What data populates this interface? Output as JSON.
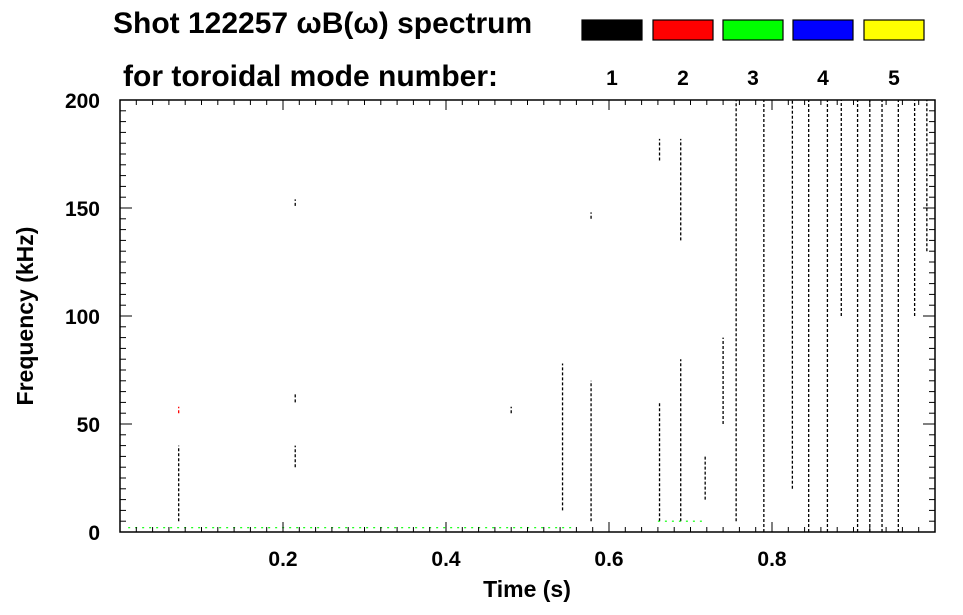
{
  "chart_data": {
    "type": "heatmap",
    "title_line1": "Shot 122257 ωB(ω) spectrum",
    "title_line2": "for toroidal mode number:",
    "xlabel": "Time (s)",
    "ylabel": "Frequency (kHz)",
    "xlim": [
      0.0,
      1.0
    ],
    "ylim": [
      0,
      200
    ],
    "xticks": [
      0.2,
      0.4,
      0.6,
      0.8
    ],
    "yticks": [
      0,
      50,
      100,
      150,
      200
    ],
    "grid": false,
    "legend_position": "top",
    "modes": [
      {
        "label": "1",
        "color": "#000000"
      },
      {
        "label": "2",
        "color": "#ff0000"
      },
      {
        "label": "3",
        "color": "#00ff00"
      },
      {
        "label": "4",
        "color": "#0000ff"
      },
      {
        "label": "5",
        "color": "#ffff00"
      }
    ],
    "mode_colors": [
      "#000000",
      "#ff0000",
      "#00ff00",
      "#0000ff",
      "#ffff00"
    ],
    "features": [
      {
        "mode": 0,
        "t": 0.072,
        "f0": 5,
        "f1": 40
      },
      {
        "mode": 1,
        "t": 0.072,
        "f0": 55,
        "f1": 58
      },
      {
        "mode": 0,
        "t": 0.215,
        "f0": 30,
        "f1": 40
      },
      {
        "mode": 0,
        "t": 0.215,
        "f0": 60,
        "f1": 64
      },
      {
        "mode": 0,
        "t": 0.215,
        "f0": 151,
        "f1": 154
      },
      {
        "mode": 0,
        "t": 0.48,
        "f0": 55,
        "f1": 58
      },
      {
        "mode": 0,
        "t": 0.543,
        "f0": 10,
        "f1": 78
      },
      {
        "mode": 0,
        "t": 0.578,
        "f0": 5,
        "f1": 70
      },
      {
        "mode": 0,
        "t": 0.578,
        "f0": 145,
        "f1": 148
      },
      {
        "mode": 0,
        "t": 0.662,
        "f0": 5,
        "f1": 60
      },
      {
        "mode": 0,
        "t": 0.662,
        "f0": 172,
        "f1": 182
      },
      {
        "mode": 0,
        "t": 0.688,
        "f0": 5,
        "f1": 80
      },
      {
        "mode": 0,
        "t": 0.688,
        "f0": 135,
        "f1": 182
      },
      {
        "mode": 0,
        "t": 0.718,
        "f0": 15,
        "f1": 35
      },
      {
        "mode": 0,
        "t": 0.74,
        "f0": 50,
        "f1": 90
      },
      {
        "mode": 0,
        "t": 0.756,
        "f0": 5,
        "f1": 200
      },
      {
        "mode": 0,
        "t": 0.79,
        "f0": 0,
        "f1": 200
      },
      {
        "mode": 0,
        "t": 0.825,
        "f0": 20,
        "f1": 200
      },
      {
        "mode": 0,
        "t": 0.845,
        "f0": 0,
        "f1": 200
      },
      {
        "mode": 0,
        "t": 0.868,
        "f0": 0,
        "f1": 200
      },
      {
        "mode": 0,
        "t": 0.885,
        "f0": 100,
        "f1": 200
      },
      {
        "mode": 0,
        "t": 0.905,
        "f0": 0,
        "f1": 200
      },
      {
        "mode": 0,
        "t": 0.92,
        "f0": 0,
        "f1": 200
      },
      {
        "mode": 0,
        "t": 0.935,
        "f0": 0,
        "f1": 200
      },
      {
        "mode": 0,
        "t": 0.955,
        "f0": 0,
        "f1": 200
      },
      {
        "mode": 0,
        "t": 0.975,
        "f0": 100,
        "f1": 200
      },
      {
        "mode": 0,
        "t": 0.99,
        "f0": 130,
        "f1": 200
      },
      {
        "mode": 2,
        "t0": 0.01,
        "t1": 0.56,
        "f": 2
      },
      {
        "mode": 2,
        "t0": 0.66,
        "t1": 0.72,
        "f": 5
      }
    ]
  }
}
